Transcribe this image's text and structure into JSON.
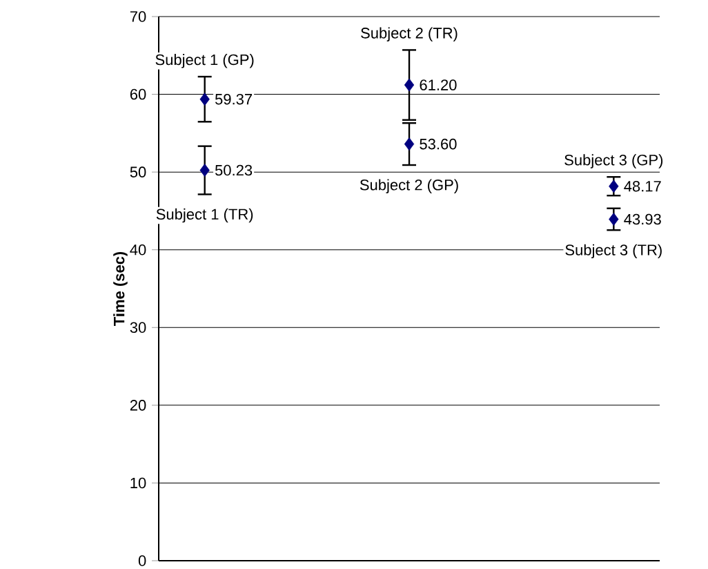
{
  "chart_data": {
    "type": "scatter",
    "ylabel": "Time (sec)",
    "categories": [
      null,
      null,
      null
    ],
    "ylim": [
      0,
      70
    ],
    "yticks": [
      0,
      10,
      20,
      30,
      40,
      50,
      60,
      70
    ],
    "grid": "y",
    "marker": "diamond",
    "series": [
      {
        "name": "Subject 1 (GP)",
        "color": "#000080",
        "values": [
          59.37,
          null,
          null
        ],
        "errors": [
          2.9,
          null,
          null
        ],
        "value_labels": [
          "59.37",
          null,
          null
        ]
      },
      {
        "name": "Subject 1 (TR)",
        "color": "#000080",
        "values": [
          50.23,
          null,
          null
        ],
        "errors": [
          3.1,
          null,
          null
        ],
        "value_labels": [
          "50.23",
          null,
          null
        ]
      },
      {
        "name": "Subject 2 (TR)",
        "color": "#000080",
        "values": [
          null,
          61.2,
          null
        ],
        "errors": [
          null,
          4.5,
          null
        ],
        "value_labels": [
          null,
          "61.20",
          null
        ]
      },
      {
        "name": "Subject 2 (GP)",
        "color": "#000080",
        "values": [
          null,
          53.6,
          null
        ],
        "errors": [
          null,
          2.7,
          null
        ],
        "value_labels": [
          null,
          "53.60",
          null
        ]
      },
      {
        "name": "Subject 3 (GP)",
        "color": "#000080",
        "values": [
          null,
          null,
          48.17
        ],
        "errors": [
          null,
          null,
          1.2
        ],
        "value_labels": [
          null,
          null,
          "48.17"
        ]
      },
      {
        "name": "Subject 3 (TR)",
        "color": "#000080",
        "values": [
          null,
          null,
          43.93
        ],
        "errors": [
          null,
          null,
          1.4
        ],
        "value_labels": [
          null,
          null,
          "43.93"
        ]
      }
    ]
  }
}
